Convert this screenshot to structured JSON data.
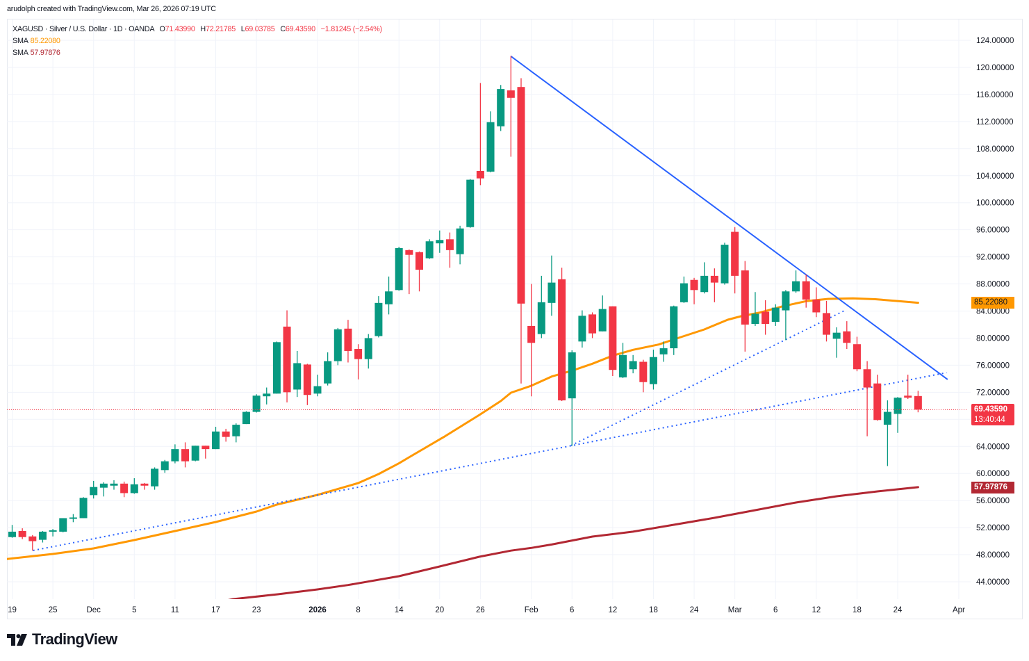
{
  "attribution": "arudolph created with TradingView.com, Mar 26, 2026 07:19 UTC",
  "legend": {
    "symbol_line": "XAGUSD · Silver / U.S. Dollar · 1D · OANDA",
    "open_label": "O",
    "open": "71.43990",
    "high_label": "H",
    "high": "72.21785",
    "low_label": "L",
    "low": "69.03785",
    "close_label": "C",
    "close": "69.43590",
    "change": "−1.81245 (−2.54%)",
    "indicators": [
      {
        "name": "SMA",
        "value": "85.22080",
        "color": "#FF9800"
      },
      {
        "name": "SMA",
        "value": "57.97876",
        "color": "#B22833"
      }
    ]
  },
  "price_axis": {
    "ticks": [
      "124.00000",
      "120.00000",
      "116.00000",
      "112.00000",
      "108.00000",
      "104.00000",
      "100.00000",
      "96.00000",
      "92.00000",
      "88.00000",
      "84.00000",
      "80.00000",
      "76.00000",
      "72.00000",
      "68.00000",
      "64.00000",
      "60.00000",
      "56.00000",
      "52.00000",
      "48.00000",
      "44.00000"
    ],
    "labels": {
      "sma_fast": {
        "value": "85.22080",
        "color": "#FF9800"
      },
      "last_price": {
        "value": "69.43590",
        "countdown": "13:40:44",
        "color": "#F23645"
      },
      "sma_slow": {
        "value": "57.97876",
        "color": "#B22833"
      }
    }
  },
  "branding": {
    "logo_text": "TradingView"
  },
  "colors": {
    "up": "#089981",
    "down": "#F23645",
    "sma_fast": "#FF9800",
    "sma_slow": "#B22833",
    "trendline": "#2962FF",
    "grid": "#F0F3FA",
    "last_price_line": "#F23645"
  },
  "chart_data": {
    "type": "candlestick",
    "title": "XAGUSD · Silver / U.S. Dollar · 1D · OANDA",
    "xlabel": "",
    "ylabel": "",
    "ylim": [
      41.4,
      127.1
    ],
    "grid": true,
    "legend_position": "top-left",
    "last_price": 69.4359,
    "columns": [
      "date",
      "open",
      "high",
      "low",
      "close"
    ],
    "candles": [
      [
        "Nov 19",
        50.6,
        52.4,
        50.5,
        51.4
      ],
      [
        "Nov 20",
        51.5,
        51.9,
        50.3,
        50.6
      ],
      [
        "Nov 21",
        50.7,
        50.9,
        48.6,
        50.0
      ],
      [
        "Nov 24",
        50.2,
        51.5,
        49.8,
        51.4
      ],
      [
        "Nov 25",
        51.4,
        51.8,
        50.7,
        51.6
      ],
      [
        "Nov 26",
        51.4,
        53.4,
        51.3,
        53.4
      ],
      [
        "Nov 27",
        53.3,
        54.0,
        52.8,
        53.5
      ],
      [
        "Nov 28",
        53.4,
        56.5,
        53.4,
        56.4
      ],
      [
        "Dec 1",
        56.8,
        58.9,
        56.3,
        58.0
      ],
      [
        "Dec 2",
        57.9,
        58.7,
        56.6,
        58.5
      ],
      [
        "Dec 3",
        58.2,
        59.0,
        57.6,
        58.5
      ],
      [
        "Dec 4",
        58.5,
        58.8,
        56.5,
        57.1
      ],
      [
        "Dec 5",
        57.1,
        59.3,
        57.0,
        58.4
      ],
      [
        "Dec 8",
        58.5,
        58.6,
        57.6,
        58.2
      ],
      [
        "Dec 9",
        58.1,
        60.9,
        57.6,
        60.7
      ],
      [
        "Dec 10",
        60.5,
        62.0,
        60.1,
        61.8
      ],
      [
        "Dec 11",
        61.8,
        64.3,
        61.5,
        63.6
      ],
      [
        "Dec 12",
        63.6,
        64.6,
        60.9,
        61.8
      ],
      [
        "Dec 15",
        61.9,
        64.1,
        61.8,
        64.1
      ],
      [
        "Dec 16",
        64.1,
        64.1,
        62.2,
        63.6
      ],
      [
        "Dec 17",
        63.6,
        66.9,
        63.6,
        66.2
      ],
      [
        "Dec 18",
        66.2,
        66.6,
        64.7,
        65.4
      ],
      [
        "Dec 19",
        65.5,
        67.4,
        64.6,
        67.2
      ],
      [
        "Dec 22",
        67.3,
        69.2,
        67.3,
        69.1
      ],
      [
        "Dec 23",
        69.1,
        71.7,
        69.0,
        71.5
      ],
      [
        "Dec 24",
        71.4,
        72.7,
        70.2,
        71.8
      ],
      [
        "Dec 26",
        71.8,
        79.5,
        71.8,
        79.4
      ],
      [
        "Dec 29",
        81.7,
        84.1,
        70.5,
        72.0
      ],
      [
        "Dec 30",
        72.4,
        78.1,
        71.3,
        76.3
      ],
      [
        "Dec 31",
        76.1,
        76.2,
        70.1,
        71.6
      ],
      [
        "Jan 2",
        71.8,
        74.6,
        71.4,
        72.9
      ],
      [
        "Jan 5",
        73.3,
        77.9,
        73.0,
        76.6
      ],
      [
        "Jan 6",
        76.6,
        81.5,
        76.0,
        81.3
      ],
      [
        "Jan 7",
        81.4,
        82.7,
        76.4,
        78.1
      ],
      [
        "Jan 8",
        78.4,
        79.1,
        73.9,
        76.9
      ],
      [
        "Jan 9",
        76.9,
        80.6,
        75.5,
        80.0
      ],
      [
        "Jan 12",
        80.3,
        86.2,
        80.1,
        85.2
      ],
      [
        "Jan 13",
        85.0,
        89.1,
        83.5,
        86.9
      ],
      [
        "Jan 14",
        87.1,
        93.5,
        87.0,
        93.3
      ],
      [
        "Jan 15",
        93.0,
        93.1,
        86.5,
        92.3
      ],
      [
        "Jan 16",
        92.7,
        92.8,
        86.9,
        90.1
      ],
      [
        "Jan 19",
        91.8,
        94.6,
        91.7,
        94.3
      ],
      [
        "Jan 20",
        94.0,
        95.9,
        92.6,
        94.5
      ],
      [
        "Jan 21",
        94.6,
        95.6,
        90.4,
        93.0
      ],
      [
        "Jan 22",
        92.4,
        96.6,
        90.9,
        96.2
      ],
      [
        "Jan 23",
        96.4,
        103.5,
        96.3,
        103.4
      ],
      [
        "Jan 26",
        104.7,
        117.7,
        102.6,
        103.6
      ],
      [
        "Jan 27",
        104.6,
        113.5,
        104.5,
        111.9
      ],
      [
        "Jan 28",
        111.3,
        117.4,
        110.6,
        116.8
      ],
      [
        "Jan 29",
        116.6,
        121.7,
        106.8,
        115.5
      ],
      [
        "Jan 30",
        117.1,
        118.4,
        73.3,
        85.1
      ],
      [
        "Feb 2",
        81.8,
        88.0,
        71.4,
        79.3
      ],
      [
        "Feb 3",
        80.6,
        89.2,
        80.0,
        85.3
      ],
      [
        "Feb 4",
        85.2,
        92.2,
        83.3,
        88.2
      ],
      [
        "Feb 5",
        88.7,
        90.4,
        70.7,
        70.8
      ],
      [
        "Feb 6",
        71.1,
        78.2,
        64.1,
        77.9
      ],
      [
        "Feb 9",
        79.5,
        84.1,
        78.6,
        83.3
      ],
      [
        "Feb 10",
        83.5,
        83.8,
        80.0,
        80.7
      ],
      [
        "Feb 11",
        81.0,
        86.3,
        81.0,
        84.3
      ],
      [
        "Feb 12",
        84.7,
        84.7,
        74.4,
        75.3
      ],
      [
        "Feb 13",
        74.2,
        79.3,
        74.1,
        77.5
      ],
      [
        "Feb 16",
        75.4,
        77.5,
        74.8,
        76.6
      ],
      [
        "Feb 17",
        76.5,
        76.8,
        72.0,
        73.5
      ],
      [
        "Feb 18",
        73.2,
        78.3,
        72.4,
        77.2
      ],
      [
        "Feb 19",
        77.6,
        79.5,
        76.5,
        78.5
      ],
      [
        "Feb 20",
        78.5,
        84.8,
        77.5,
        84.7
      ],
      [
        "Feb 23",
        85.3,
        89.1,
        85.2,
        88.1
      ],
      [
        "Feb 24",
        88.6,
        88.9,
        85.0,
        87.1
      ],
      [
        "Feb 25",
        86.8,
        91.2,
        86.6,
        89.2
      ],
      [
        "Feb 26",
        89.2,
        90.3,
        85.3,
        88.2
      ],
      [
        "Feb 27",
        88.1,
        94.1,
        87.9,
        93.8
      ],
      [
        "Mar 2",
        95.7,
        96.4,
        86.6,
        89.2
      ],
      [
        "Mar 3",
        90.0,
        91.4,
        78.0,
        82.0
      ],
      [
        "Mar 4",
        82.1,
        86.8,
        81.8,
        83.6
      ],
      [
        "Mar 5",
        83.9,
        85.6,
        80.5,
        82.1
      ],
      [
        "Mar 6",
        82.4,
        85.0,
        81.8,
        84.5
      ],
      [
        "Mar 9",
        84.1,
        87.1,
        79.7,
        86.9
      ],
      [
        "Mar 10",
        86.9,
        90.0,
        86.7,
        88.4
      ],
      [
        "Mar 11",
        88.4,
        89.4,
        84.5,
        85.7
      ],
      [
        "Mar 12",
        85.7,
        87.5,
        83.1,
        83.8
      ],
      [
        "Mar 13",
        83.7,
        85.5,
        79.5,
        80.5
      ],
      [
        "Mar 16",
        79.9,
        81.6,
        77.1,
        80.8
      ],
      [
        "Mar 17",
        81.0,
        82.5,
        78.4,
        79.3
      ],
      [
        "Mar 18",
        79.1,
        80.2,
        75.1,
        75.4
      ],
      [
        "Mar 19",
        75.4,
        76.6,
        65.5,
        72.7
      ],
      [
        "Mar 20",
        73.3,
        74.6,
        67.8,
        67.9
      ],
      [
        "Mar 23",
        67.2,
        70.8,
        61.1,
        69.1
      ],
      [
        "Mar 24",
        68.8,
        71.3,
        66.0,
        71.2
      ],
      [
        "Mar 25",
        71.5,
        74.6,
        71.0,
        71.2
      ],
      [
        "Mar 26",
        71.4399,
        72.21785,
        69.03785,
        69.4359
      ]
    ],
    "series": [
      {
        "name": "SMA",
        "key": "sma_fast",
        "last_value": 85.2208,
        "color": "#FF9800",
        "points": [
          [
            -0.6,
            47.35
          ],
          [
            4,
            48.11
          ],
          [
            8,
            48.93
          ],
          [
            12,
            50.16
          ],
          [
            16,
            51.5
          ],
          [
            20,
            52.83
          ],
          [
            24,
            54.37
          ],
          [
            26,
            55.4
          ],
          [
            30,
            56.84
          ],
          [
            34,
            58.58
          ],
          [
            36,
            59.92
          ],
          [
            38,
            61.5
          ],
          [
            39.1,
            62.49
          ],
          [
            42.5,
            65.47
          ],
          [
            45.9,
            68.65
          ],
          [
            48,
            70.7
          ],
          [
            49,
            71.93
          ],
          [
            51,
            72.96
          ],
          [
            53,
            74.33
          ],
          [
            55,
            75.19
          ],
          [
            57,
            76.22
          ],
          [
            59,
            77.41
          ],
          [
            61,
            78.27
          ],
          [
            63.5,
            79.05
          ],
          [
            65.7,
            80.15
          ],
          [
            68,
            81.28
          ],
          [
            70.3,
            82.72
          ],
          [
            71.6,
            83.23
          ],
          [
            73.4,
            83.75
          ],
          [
            75.7,
            84.7
          ],
          [
            78,
            85.46
          ],
          [
            80.2,
            85.8
          ],
          [
            82.6,
            85.87
          ],
          [
            84.8,
            85.75
          ],
          [
            86.9,
            85.49
          ],
          [
            89,
            85.22
          ]
        ]
      },
      {
        "name": "SMA",
        "key": "sma_slow",
        "last_value": 57.97876,
        "color": "#B22833",
        "points": [
          [
            20,
            40.9
          ],
          [
            21.7,
            41.43
          ],
          [
            26.1,
            42.15
          ],
          [
            30,
            42.87
          ],
          [
            33,
            43.52
          ],
          [
            38,
            44.82
          ],
          [
            42,
            46.26
          ],
          [
            45.9,
            47.7
          ],
          [
            49,
            48.6
          ],
          [
            51,
            49.0
          ],
          [
            53,
            49.5
          ],
          [
            57,
            50.68
          ],
          [
            61,
            51.4
          ],
          [
            65,
            52.42
          ],
          [
            69,
            53.45
          ],
          [
            73,
            54.58
          ],
          [
            77,
            55.71
          ],
          [
            81,
            56.63
          ],
          [
            85,
            57.35
          ],
          [
            89,
            57.98
          ]
        ]
      }
    ],
    "drawings": [
      {
        "type": "trendline",
        "style": "solid",
        "color": "#2962FF",
        "from": [
          49,
          121.64
        ],
        "to": [
          91.9,
          73.89
        ]
      },
      {
        "type": "trendline",
        "style": "dotted",
        "color": "#2962FF",
        "from": [
          2.06,
          48.62
        ],
        "to": [
          91.8,
          74.9
        ]
      },
      {
        "type": "trendline",
        "style": "dotted",
        "color": "#2962FF",
        "from": [
          54.9,
          64.13
        ],
        "to": [
          81.9,
          84.16
        ]
      }
    ],
    "x_ticks": [
      {
        "label": "19",
        "index": 0
      },
      {
        "label": "25",
        "index": 4
      },
      {
        "label": "Dec",
        "index": 8
      },
      {
        "label": "5",
        "index": 12
      },
      {
        "label": "11",
        "index": 16
      },
      {
        "label": "17",
        "index": 20
      },
      {
        "label": "23",
        "index": 24
      },
      {
        "label": "2026",
        "index": 30,
        "bold": true
      },
      {
        "label": "8",
        "index": 34
      },
      {
        "label": "14",
        "index": 38
      },
      {
        "label": "20",
        "index": 42
      },
      {
        "label": "26",
        "index": 46
      },
      {
        "label": "Feb",
        "index": 51
      },
      {
        "label": "6",
        "index": 55
      },
      {
        "label": "12",
        "index": 59
      },
      {
        "label": "18",
        "index": 63
      },
      {
        "label": "24",
        "index": 67
      },
      {
        "label": "Mar",
        "index": 71
      },
      {
        "label": "6",
        "index": 75
      },
      {
        "label": "12",
        "index": 79
      },
      {
        "label": "18",
        "index": 83
      },
      {
        "label": "24",
        "index": 87
      },
      {
        "label": "Apr",
        "index": 93
      }
    ],
    "y_ticks": [
      124,
      120,
      116,
      112,
      108,
      104,
      100,
      96,
      92,
      88,
      84,
      80,
      76,
      72,
      68,
      64,
      60,
      56,
      52,
      48,
      44
    ]
  }
}
